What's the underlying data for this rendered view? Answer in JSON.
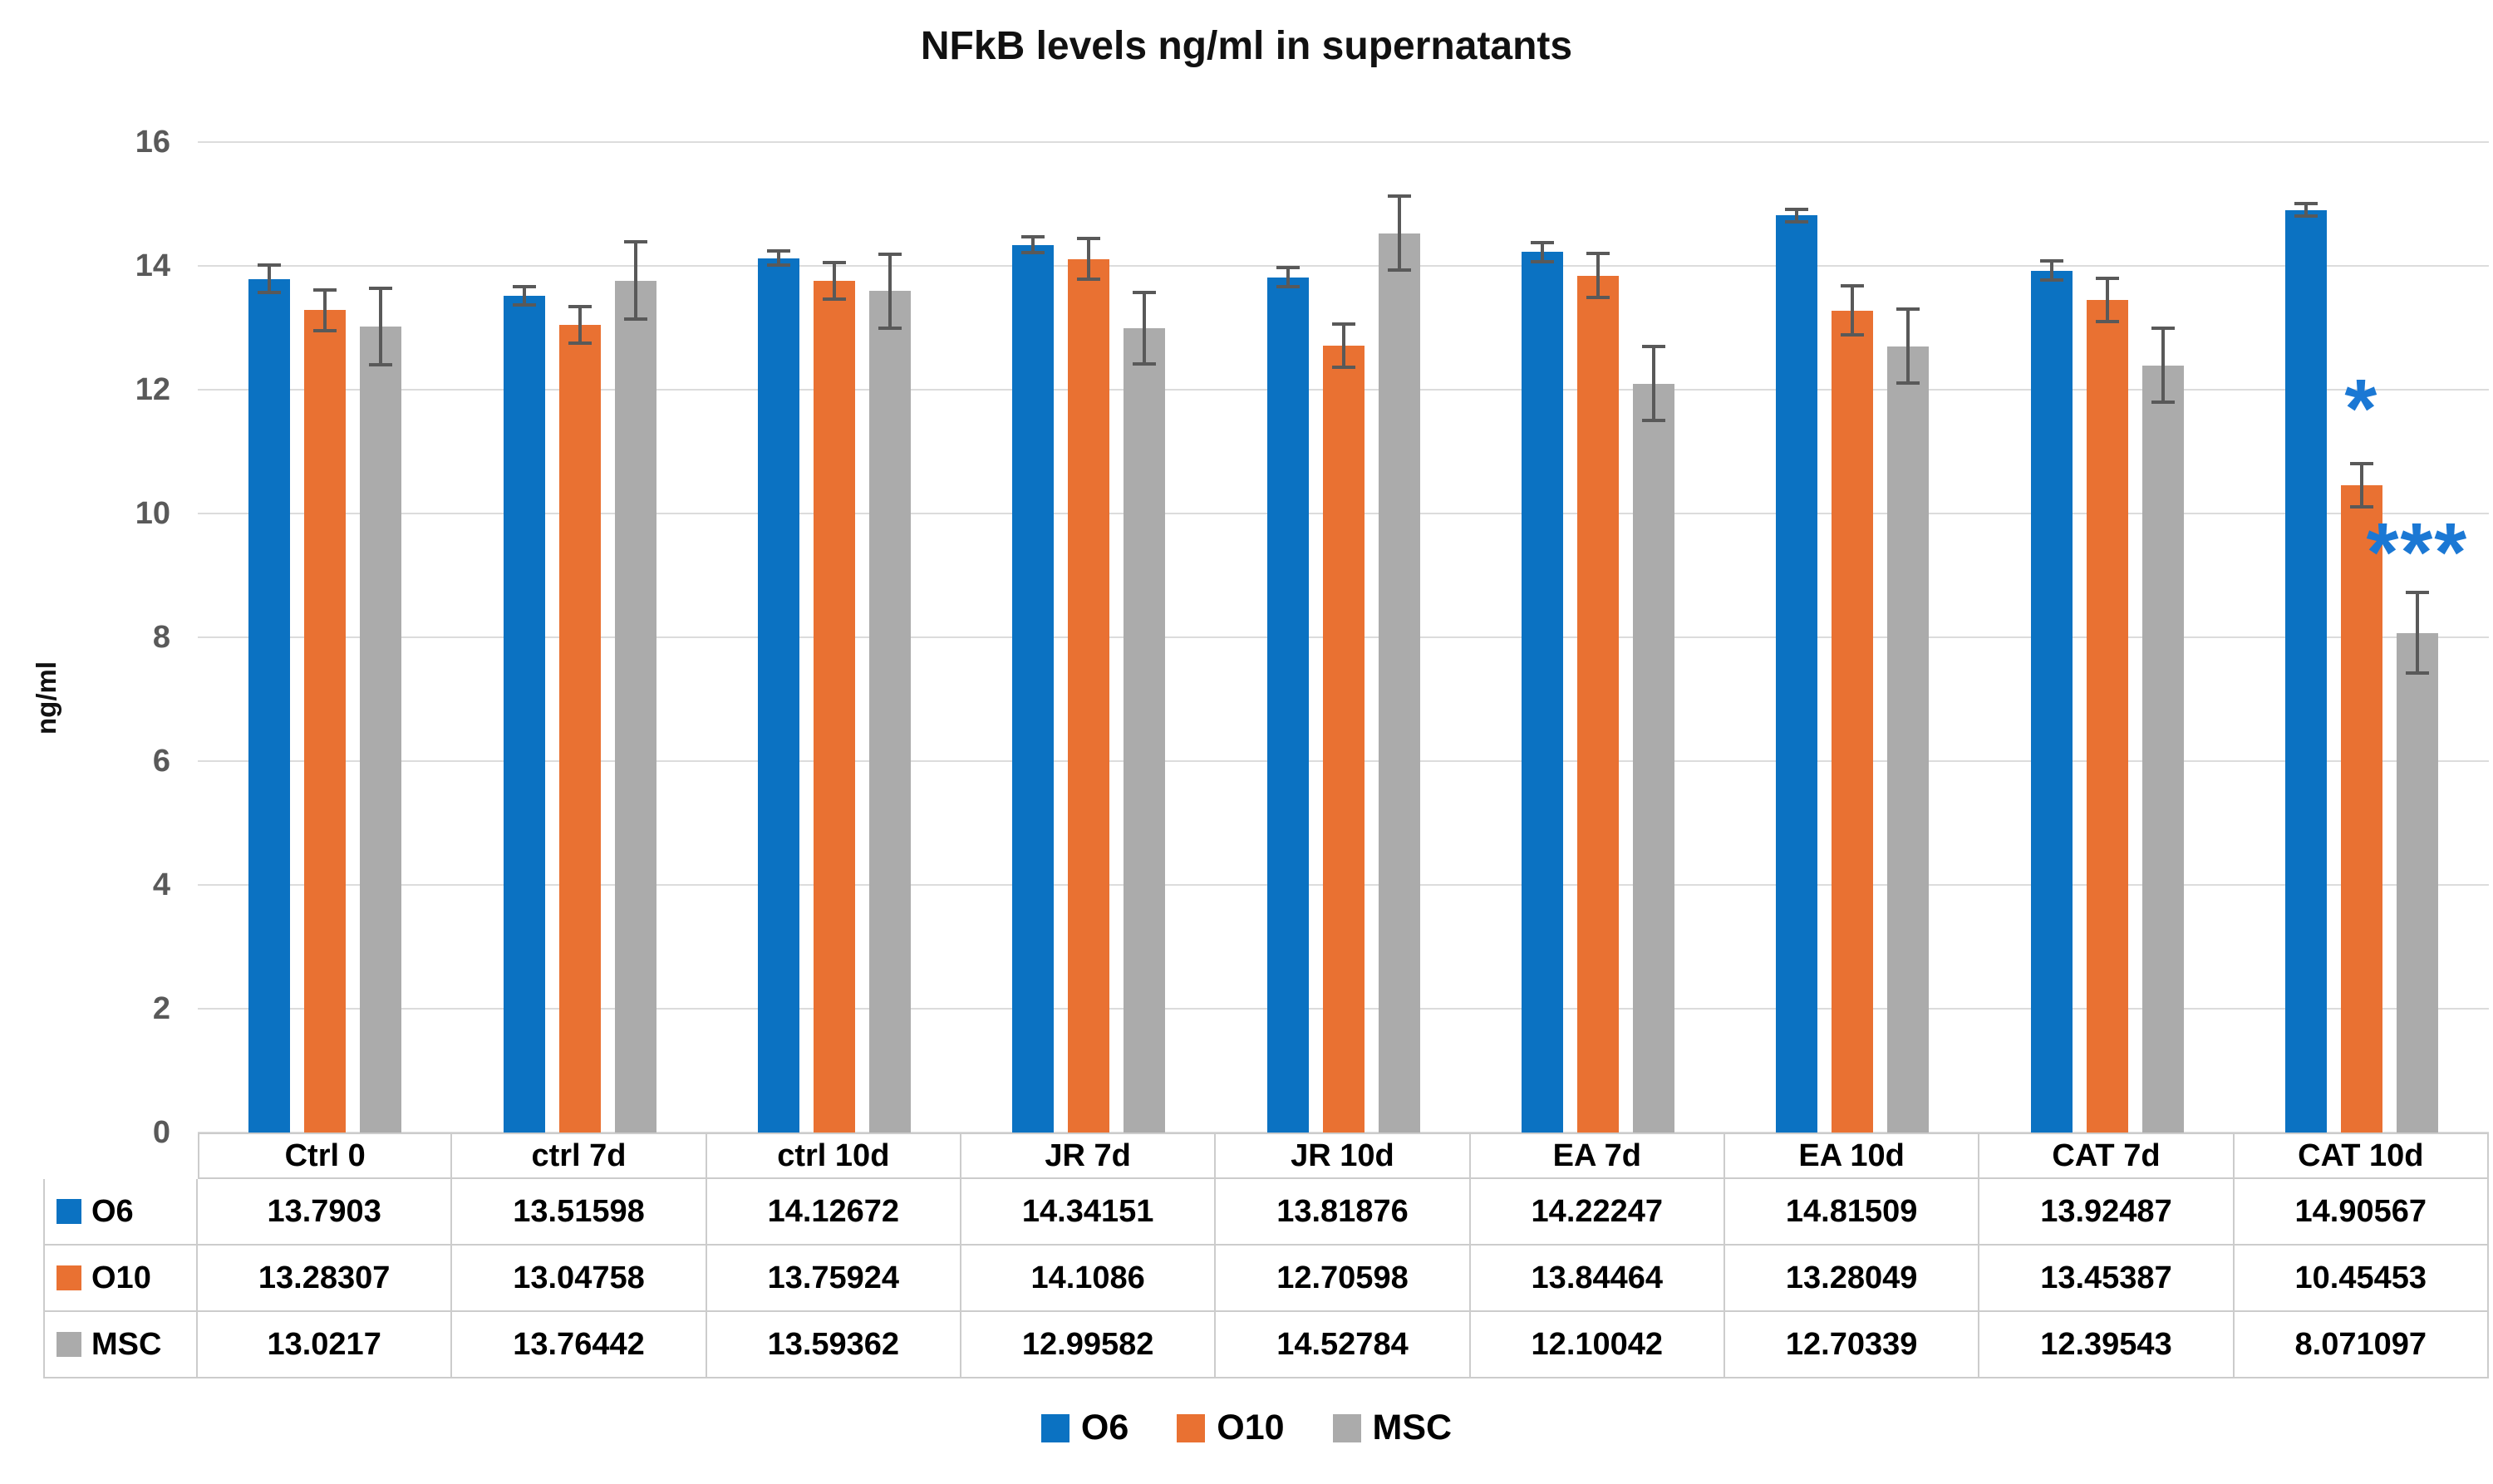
{
  "chart_data": {
    "type": "bar",
    "title": "NFkB levels ng/ml in supernatants",
    "y_axis": {
      "label": "ng/ml",
      "min": 0,
      "max": 16,
      "step": 2,
      "tick_labels": [
        "0",
        "2",
        "4",
        "6",
        "8",
        "10",
        "12",
        "14",
        "16"
      ]
    },
    "grid": true,
    "legend_position": "bottom",
    "categories": [
      "Ctrl 0",
      "ctrl 7d",
      "ctrl 10d",
      "JR 7d",
      "JR 10d",
      "EA 7d",
      "EA 10d",
      "CAT 7d",
      "CAT 10d"
    ],
    "series": [
      {
        "name": "O6",
        "color": "#0B72C2",
        "values": [
          "13.7903",
          "13.51598",
          "14.12672",
          "14.34151",
          "13.81876",
          "14.22247",
          "14.81509",
          "13.92487",
          "14.90567"
        ],
        "errors": [
          0.22,
          0.15,
          0.12,
          0.13,
          0.15,
          0.15,
          0.1,
          0.15,
          0.1
        ]
      },
      {
        "name": "O10",
        "color": "#E97132",
        "values": [
          "13.28307",
          "13.04758",
          "13.75924",
          "14.1086",
          "12.70598",
          "13.84464",
          "13.28049",
          "13.45387",
          "10.45453"
        ],
        "errors": [
          0.33,
          0.3,
          0.3,
          0.33,
          0.35,
          0.35,
          0.4,
          0.35,
          0.35
        ]
      },
      {
        "name": "MSC",
        "color": "#ABABAB",
        "values": [
          "13.0217",
          "13.76442",
          "13.59362",
          "12.99582",
          "14.52784",
          "12.10042",
          "12.70339",
          "12.39543",
          "8.071097"
        ],
        "errors": [
          0.62,
          0.62,
          0.6,
          0.58,
          0.6,
          0.6,
          0.6,
          0.6,
          0.65
        ]
      }
    ],
    "annotations": [
      {
        "text": "*",
        "category_index": 8,
        "series_index": 1,
        "color": "#1B78D4"
      },
      {
        "text": "***",
        "category_index": 8,
        "series_index": 2,
        "color": "#1B78D4"
      }
    ],
    "styles": {
      "gridline_color": "#dcdcdc",
      "tick_label_color": "#595959",
      "error_bar_color": "#595959",
      "table_border_color": "#cccccc"
    }
  }
}
